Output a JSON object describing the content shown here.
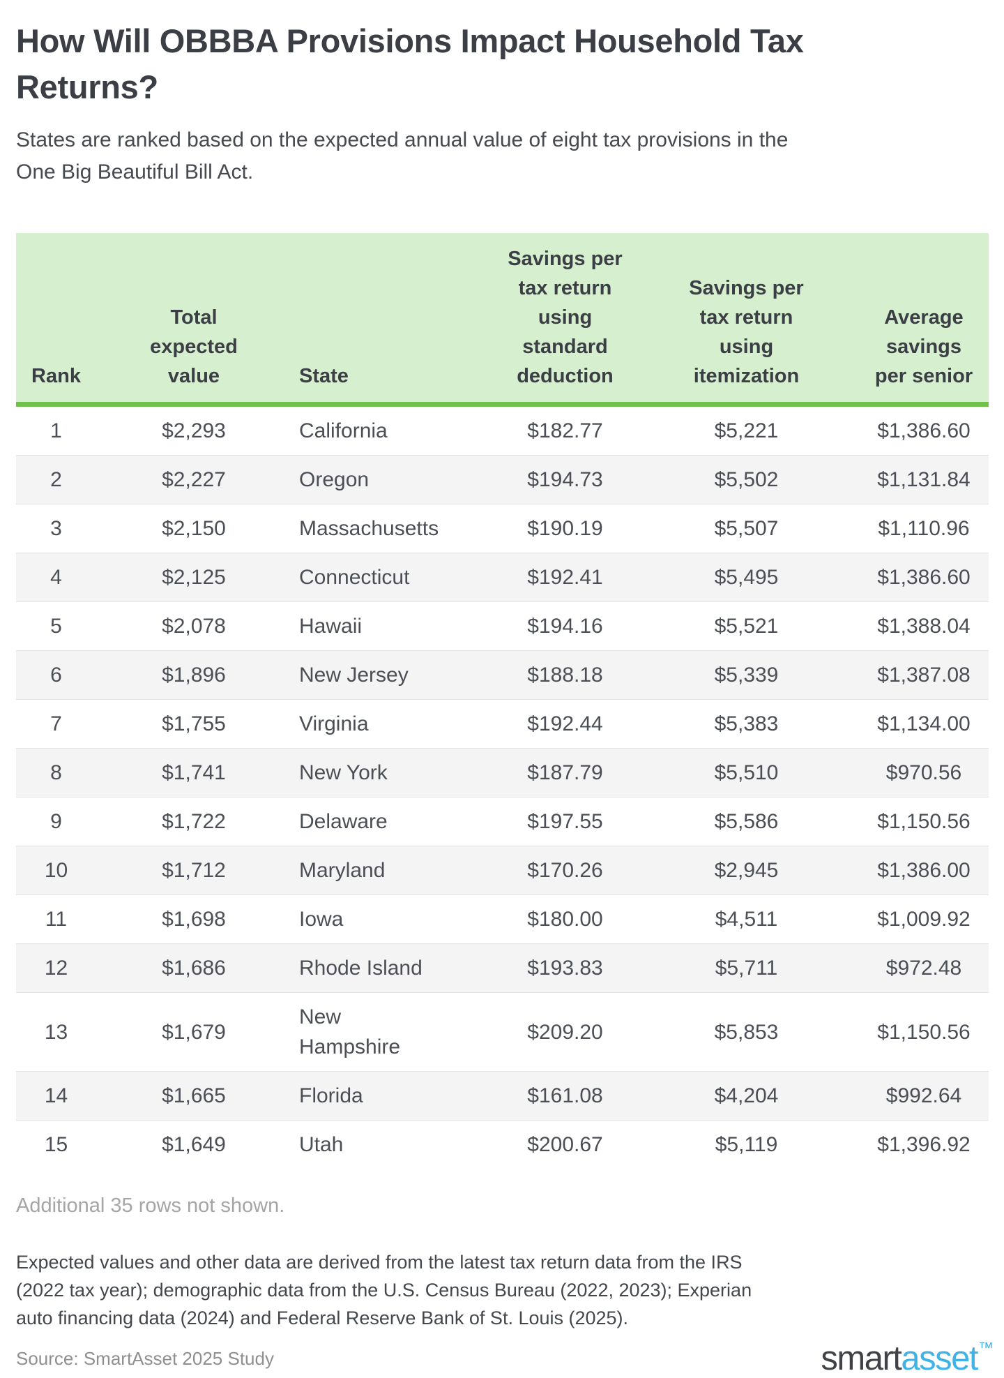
{
  "page": {
    "title": "How Will OBBBA Provisions Impact Household Tax\nReturns?",
    "subtitle": "States are ranked based on the expected annual value of eight tax provisions in the\nOne Big Beautiful Bill Act."
  },
  "chart_data": {
    "type": "table",
    "title": "How Will OBBBA Provisions Impact Household Tax Returns?",
    "subtitle": "States are ranked based on the expected annual value of eight tax provisions in the One Big Beautiful Bill Act.",
    "column_keys": [
      "rank",
      "total-expected-value",
      "state",
      "savings-standard-deduction",
      "savings-itemization",
      "average-savings-per-senior"
    ],
    "columns": [
      "Rank",
      "Total\nexpected\nvalue",
      "State",
      "Savings per\ntax return\nusing\nstandard\ndeduction",
      "Savings per\ntax return\nusing\nitemization",
      "Average\nsavings\nper senior"
    ],
    "rows": [
      [
        "1",
        "$2,293",
        "California",
        "$182.77",
        "$5,221",
        "$1,386.60"
      ],
      [
        "2",
        "$2,227",
        "Oregon",
        "$194.73",
        "$5,502",
        "$1,131.84"
      ],
      [
        "3",
        "$2,150",
        "Massachusetts",
        "$190.19",
        "$5,507",
        "$1,110.96"
      ],
      [
        "4",
        "$2,125",
        "Connecticut",
        "$192.41",
        "$5,495",
        "$1,386.60"
      ],
      [
        "5",
        "$2,078",
        "Hawaii",
        "$194.16",
        "$5,521",
        "$1,388.04"
      ],
      [
        "6",
        "$1,896",
        "New Jersey",
        "$188.18",
        "$5,339",
        "$1,387.08"
      ],
      [
        "7",
        "$1,755",
        "Virginia",
        "$192.44",
        "$5,383",
        "$1,134.00"
      ],
      [
        "8",
        "$1,741",
        "New York",
        "$187.79",
        "$5,510",
        "$970.56"
      ],
      [
        "9",
        "$1,722",
        "Delaware",
        "$197.55",
        "$5,586",
        "$1,150.56"
      ],
      [
        "10",
        "$1,712",
        "Maryland",
        "$170.26",
        "$2,945",
        "$1,386.00"
      ],
      [
        "11",
        "$1,698",
        "Iowa",
        "$180.00",
        "$4,511",
        "$1,009.92"
      ],
      [
        "12",
        "$1,686",
        "Rhode Island",
        "$193.83",
        "$5,711",
        "$972.48"
      ],
      [
        "13",
        "$1,679",
        "New\nHampshire",
        "$209.20",
        "$5,853",
        "$1,150.56"
      ],
      [
        "14",
        "$1,665",
        "Florida",
        "$161.08",
        "$4,204",
        "$992.64"
      ],
      [
        "15",
        "$1,649",
        "Utah",
        "$200.67",
        "$5,119",
        "$1,396.92"
      ]
    ]
  },
  "notes": {
    "additional_rows": "Additional 35 rows not shown.",
    "methodology": "Expected values and other data are derived from the latest tax return data from the IRS\n(2022 tax year); demographic data from the U.S. Census Bureau (2022, 2023); Experian\nauto financing data (2024) and Federal Reserve Bank of St. Louis (2025).",
    "source": "Source: SmartAsset 2025 Study"
  },
  "branding": {
    "logo_part1": "smart",
    "logo_part2": "asset",
    "trademark": "™"
  },
  "colors": {
    "header_bg": "#d6efcf",
    "header_border_green": "#70c04c",
    "alt_row_bg": "#f4f4f4",
    "title_text": "#3b3f45",
    "body_text": "#4b4f55",
    "muted_text": "#a5a5a5",
    "source_text": "#8f8f8f",
    "logo_dark": "#3f4347",
    "logo_blue": "#41b2e6"
  }
}
